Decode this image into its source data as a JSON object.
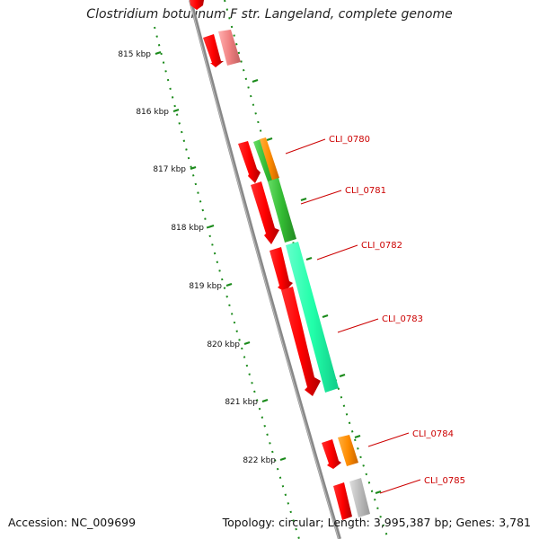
{
  "title": "Clostridium botulinum F str. Langeland, complete genome",
  "accession": "Accession: NC_009699",
  "summary": "Topology: circular; Length: 3,995,387 bp; Genes: 3,781",
  "ticks": [
    {
      "kbp": 815,
      "label": "815 kbp"
    },
    {
      "kbp": 816,
      "label": "816 kbp"
    },
    {
      "kbp": 817,
      "label": "817 kbp"
    },
    {
      "kbp": 818,
      "label": "818 kbp"
    },
    {
      "kbp": 819,
      "label": "819 kbp"
    },
    {
      "kbp": 820,
      "label": "820 kbp"
    },
    {
      "kbp": 821,
      "label": "821 kbp"
    },
    {
      "kbp": 822,
      "label": "822 kbp"
    }
  ],
  "genes": [
    {
      "id": "CLI_0780",
      "label": "CLI_0780"
    },
    {
      "id": "CLI_0781",
      "label": "CLI_0781"
    },
    {
      "id": "CLI_0782",
      "label": "CLI_0782"
    },
    {
      "id": "CLI_0783",
      "label": "CLI_0783"
    },
    {
      "id": "CLI_0784",
      "label": "CLI_0784"
    },
    {
      "id": "CLI_0785",
      "label": "CLI_0785"
    }
  ],
  "colors": {
    "backbone": "#808080",
    "cds": "#ff0000",
    "tick": "#1a8a1a",
    "label": "#cc0000",
    "orange": "#ff8c00",
    "green": "#33bb33",
    "teal": "#22ffaa",
    "pink": "#f08080",
    "grey": "#bbbbbb"
  }
}
